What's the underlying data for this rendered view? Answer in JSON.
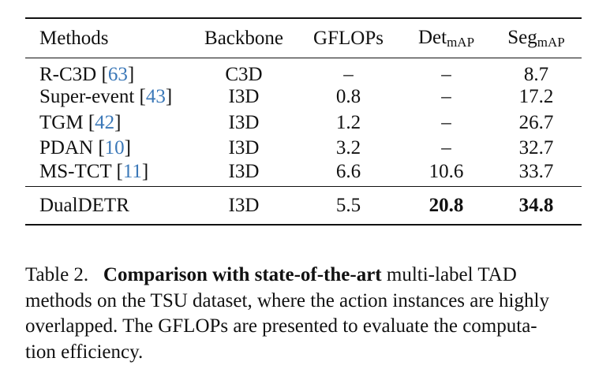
{
  "table": {
    "headers": {
      "methods": "Methods",
      "backbone": "Backbone",
      "gflops": "GFLOPs",
      "det_main": "Det",
      "det_sub": "mAP",
      "seg_main": "Seg",
      "seg_sub": "mAP"
    },
    "rows": [
      {
        "method": "R-C3D",
        "cite_open": " [",
        "cite": "63",
        "cite_close": "]",
        "backbone": "C3D",
        "gflops": "–",
        "det": "–",
        "seg": "8.7"
      },
      {
        "method": "Super-event",
        "cite_open": " [",
        "cite": "43",
        "cite_close": "]",
        "backbone": "I3D",
        "gflops": "0.8",
        "det": "–",
        "seg": "17.2"
      },
      {
        "method": "TGM",
        "cite_open": " [",
        "cite": "42",
        "cite_close": "]",
        "backbone": "I3D",
        "gflops": "1.2",
        "det": "–",
        "seg": "26.7"
      },
      {
        "method": "PDAN",
        "cite_open": " [",
        "cite": "10",
        "cite_close": "]",
        "backbone": "I3D",
        "gflops": "3.2",
        "det": "–",
        "seg": "32.7"
      },
      {
        "method": "MS-TCT",
        "cite_open": " [",
        "cite": "11",
        "cite_close": "]",
        "backbone": "I3D",
        "gflops": "6.6",
        "det": "10.6",
        "seg": "33.7"
      }
    ],
    "ours": {
      "method": "DualDETR",
      "backbone": "I3D",
      "gflops": "5.5",
      "det": "20.8",
      "seg": "34.8"
    }
  },
  "caption": {
    "label": "Table 2.",
    "bold": "Comparison with state-of-the-art",
    "line1_rest": "multi-label TAD",
    "line2": "methods on the TSU dataset, where the action instances are highly",
    "line3": "overlapped. The GFLOPs are presented to evaluate the computa-",
    "line4": "tion efficiency."
  }
}
